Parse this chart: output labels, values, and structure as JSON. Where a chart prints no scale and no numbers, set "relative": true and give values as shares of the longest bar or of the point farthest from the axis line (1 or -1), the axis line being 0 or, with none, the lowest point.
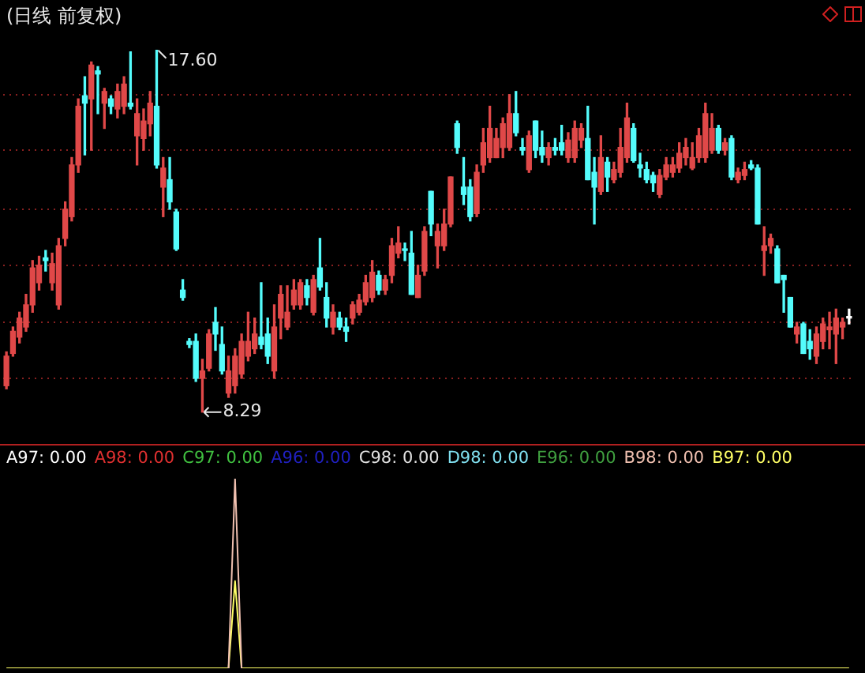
{
  "chart_data": [
    {
      "type": "candlestick",
      "title": "(日线 前复权)",
      "categories": [
        null,
        null,
        null,
        null,
        null,
        null,
        null,
        null,
        null,
        null,
        null,
        null,
        null,
        null,
        null,
        null,
        null,
        null,
        null,
        null,
        null,
        null,
        null,
        null,
        null,
        null,
        null,
        null,
        null,
        null,
        null,
        null,
        null,
        null,
        null,
        null,
        null,
        null,
        null,
        null,
        null,
        null,
        null,
        null,
        null,
        null,
        null,
        null,
        null,
        null,
        null,
        null,
        null,
        null,
        null,
        null,
        null,
        null,
        null,
        null,
        null,
        null,
        null,
        null,
        null,
        null,
        null,
        null,
        null,
        null,
        null,
        null,
        null,
        null,
        null,
        null,
        null,
        null,
        null,
        null,
        null,
        null,
        null,
        null,
        null,
        null,
        null,
        null,
        null,
        null,
        null,
        null,
        null,
        null,
        null,
        null,
        null,
        null,
        null,
        null,
        null,
        null,
        null,
        null,
        null,
        null,
        null,
        null,
        null,
        null,
        null,
        null,
        null,
        null,
        null,
        null,
        null,
        null,
        null,
        null,
        null,
        null,
        null,
        null,
        null,
        null,
        null,
        null,
        null,
        null
      ],
      "ohlc": [
        [
          8.97,
          9.84,
          8.89,
          9.73
        ],
        [
          9.8,
          10.48,
          9.73,
          10.37
        ],
        [
          10.22,
          10.86,
          10.07,
          10.71
        ],
        [
          10.48,
          11.32,
          10.37,
          11.05
        ],
        [
          11.05,
          12.19,
          10.86,
          12.0
        ],
        [
          11.62,
          12.3,
          11.43,
          12.07
        ],
        [
          12.26,
          12.45,
          11.92,
          12.19
        ],
        [
          11.62,
          12.38,
          11.43,
          12.11
        ],
        [
          11.05,
          12.76,
          10.94,
          12.57
        ],
        [
          12.76,
          13.7,
          12.57,
          13.51
        ],
        [
          13.32,
          14.84,
          13.21,
          14.65
        ],
        [
          14.65,
          16.35,
          14.46,
          16.16
        ],
        [
          16.43,
          16.92,
          14.91,
          16.24
        ],
        [
          16.35,
          17.3,
          15.03,
          17.22
        ],
        [
          17.07,
          17.18,
          15.97,
          16.99
        ],
        [
          16.24,
          16.62,
          15.59,
          16.54
        ],
        [
          16.35,
          16.43,
          15.97,
          16.16
        ],
        [
          16.09,
          16.73,
          15.86,
          16.54
        ],
        [
          16.16,
          16.92,
          15.97,
          16.73
        ],
        [
          16.24,
          17.56,
          16.09,
          16.16
        ],
        [
          15.4,
          16.35,
          14.65,
          15.97
        ],
        [
          15.33,
          16.09,
          15.03,
          15.78
        ],
        [
          15.71,
          16.54,
          15.4,
          16.24
        ],
        [
          16.16,
          17.6,
          14.57,
          14.65
        ],
        [
          14.08,
          14.84,
          13.32,
          14.57
        ],
        [
          14.27,
          14.84,
          13.51,
          13.7
        ],
        [
          13.44,
          13.51,
          12.45,
          12.49
        ],
        [
          11.43,
          11.7,
          11.17,
          11.24
        ],
        [
          10.11,
          10.18,
          9.95,
          10.03
        ],
        [
          10.11,
          10.3,
          9.08,
          9.16
        ],
        [
          9.16,
          9.65,
          8.29,
          9.35
        ],
        [
          9.42,
          10.41,
          9.35,
          10.3
        ],
        [
          10.6,
          10.98,
          9.88,
          10.3
        ],
        [
          10.03,
          10.48,
          9.27,
          9.35
        ],
        [
          8.78,
          9.73,
          8.67,
          9.35
        ],
        [
          8.97,
          9.92,
          8.78,
          9.73
        ],
        [
          9.27,
          10.3,
          9.16,
          10.11
        ],
        [
          9.73,
          10.86,
          9.61,
          10.11
        ],
        [
          9.92,
          10.71,
          9.8,
          10.3
        ],
        [
          10.22,
          11.62,
          9.92,
          10.03
        ],
        [
          10.3,
          10.71,
          9.54,
          9.73
        ],
        [
          9.35,
          11.05,
          9.16,
          10.48
        ],
        [
          10.71,
          11.54,
          10.18,
          11.32
        ],
        [
          10.48,
          11.54,
          10.41,
          10.86
        ],
        [
          11.05,
          11.7,
          10.94,
          11.43
        ],
        [
          11.05,
          11.7,
          10.94,
          11.62
        ],
        [
          11.54,
          11.7,
          11.05,
          11.24
        ],
        [
          10.86,
          11.81,
          10.79,
          11.7
        ],
        [
          12.0,
          12.76,
          11.43,
          11.51
        ],
        [
          11.24,
          11.62,
          10.48,
          10.71
        ],
        [
          10.48,
          11.05,
          10.3,
          10.86
        ],
        [
          10.71,
          10.86,
          10.41,
          10.48
        ],
        [
          10.48,
          10.71,
          10.11,
          10.37
        ],
        [
          10.71,
          11.13,
          10.56,
          11.05
        ],
        [
          10.86,
          11.32,
          10.79,
          11.17
        ],
        [
          11.13,
          11.81,
          11.05,
          11.62
        ],
        [
          11.24,
          12.19,
          11.13,
          11.89
        ],
        [
          11.81,
          11.92,
          11.32,
          11.43
        ],
        [
          11.43,
          11.81,
          11.32,
          11.7
        ],
        [
          11.81,
          12.76,
          11.62,
          12.57
        ],
        [
          12.38,
          13.06,
          12.26,
          12.64
        ],
        [
          12.49,
          12.64,
          12.19,
          12.45
        ],
        [
          12.38,
          12.94,
          11.32,
          11.32
        ],
        [
          11.24,
          12.07,
          11.24,
          11.81
        ],
        [
          11.92,
          13.06,
          11.81,
          12.94
        ],
        [
          13.97,
          13.97,
          12.83,
          13.13
        ],
        [
          12.57,
          13.13,
          12.0,
          12.94
        ],
        [
          12.57,
          13.51,
          12.45,
          13.13
        ],
        [
          13.13,
          14.34,
          13.06,
          14.34
        ],
        [
          15.71,
          15.78,
          14.95,
          15.1
        ],
        [
          14.08,
          14.84,
          13.63,
          13.89
        ],
        [
          14.08,
          14.27,
          13.21,
          13.32
        ],
        [
          13.4,
          14.65,
          13.32,
          14.46
        ],
        [
          14.65,
          15.59,
          14.46,
          15.22
        ],
        [
          14.84,
          16.16,
          14.72,
          15.59
        ],
        [
          14.84,
          15.59,
          14.84,
          15.33
        ],
        [
          15.1,
          15.86,
          14.84,
          15.71
        ],
        [
          15.1,
          16.46,
          15.03,
          15.97
        ],
        [
          15.97,
          16.54,
          15.4,
          15.48
        ],
        [
          15.1,
          15.33,
          14.91,
          15.03
        ],
        [
          14.53,
          15.52,
          14.46,
          15.4
        ],
        [
          15.78,
          15.78,
          14.84,
          15.03
        ],
        [
          15.1,
          15.52,
          14.72,
          14.91
        ],
        [
          14.84,
          15.22,
          14.65,
          15.1
        ],
        [
          15.1,
          15.33,
          14.91,
          15.03
        ],
        [
          15.22,
          15.67,
          14.91,
          15.03
        ],
        [
          14.84,
          15.48,
          14.72,
          15.29
        ],
        [
          14.84,
          15.78,
          14.72,
          15.59
        ],
        [
          15.29,
          15.71,
          15.1,
          15.59
        ],
        [
          15.33,
          16.16,
          14.27,
          14.27
        ],
        [
          14.46,
          14.84,
          13.13,
          14.08
        ],
        [
          13.97,
          15.4,
          13.89,
          14.84
        ],
        [
          14.72,
          14.84,
          13.97,
          14.34
        ],
        [
          14.27,
          14.72,
          14.19,
          14.53
        ],
        [
          14.46,
          15.59,
          14.34,
          15.1
        ],
        [
          14.84,
          16.24,
          14.72,
          15.86
        ],
        [
          15.59,
          15.71,
          14.72,
          14.76
        ],
        [
          14.65,
          14.95,
          14.34,
          14.57
        ],
        [
          14.53,
          14.72,
          14.19,
          14.27
        ],
        [
          14.38,
          14.46,
          13.97,
          14.19
        ],
        [
          13.89,
          14.53,
          13.81,
          14.38
        ],
        [
          14.34,
          14.84,
          14.27,
          14.65
        ],
        [
          14.46,
          14.84,
          14.34,
          14.65
        ],
        [
          14.57,
          15.22,
          14.46,
          14.95
        ],
        [
          14.84,
          15.33,
          14.65,
          15.1
        ],
        [
          14.57,
          15.22,
          14.53,
          14.84
        ],
        [
          14.84,
          15.59,
          14.72,
          15.4
        ],
        [
          14.84,
          16.24,
          14.72,
          15.97
        ],
        [
          15.03,
          15.97,
          14.95,
          15.59
        ],
        [
          15.59,
          15.67,
          14.95,
          15.03
        ],
        [
          15.03,
          15.33,
          14.91,
          15.22
        ],
        [
          15.33,
          15.4,
          14.27,
          14.34
        ],
        [
          14.27,
          14.57,
          14.19,
          14.46
        ],
        [
          14.38,
          14.72,
          14.27,
          14.53
        ],
        [
          14.65,
          14.76,
          14.53,
          14.57
        ],
        [
          14.57,
          14.65,
          13.13,
          13.13
        ],
        [
          12.45,
          13.06,
          11.81,
          12.57
        ],
        [
          12.57,
          12.87,
          12.38,
          12.76
        ],
        [
          12.49,
          12.57,
          11.62,
          11.62
        ],
        [
          11.81,
          11.81,
          10.86,
          11.7
        ],
        [
          11.24,
          11.24,
          10.48,
          10.48
        ],
        [
          10.3,
          10.6,
          10.07,
          10.48
        ],
        [
          10.56,
          10.6,
          9.8,
          9.8
        ],
        [
          10.11,
          10.41,
          9.65,
          9.92
        ],
        [
          9.73,
          10.48,
          9.54,
          10.3
        ],
        [
          10.11,
          10.71,
          9.92,
          10.56
        ],
        [
          10.41,
          10.86,
          9.92,
          10.48
        ],
        [
          10.3,
          10.94,
          9.54,
          10.71
        ],
        [
          10.48,
          10.71,
          10.18,
          10.6
        ],
        [
          10.71,
          10.94,
          10.56,
          10.71
        ]
      ],
      "colors": [
        "#e04848",
        "#e04848",
        "#e04848",
        "#e04848",
        "#e04848",
        "#e04848",
        "#54fcfc",
        "#e04848",
        "#e04848",
        "#e04848",
        "#e04848",
        "#e04848",
        "#54fcfc",
        "#e04848",
        "#54fcfc",
        "#e04848",
        "#54fcfc",
        "#e04848",
        "#e04848",
        "#54fcfc",
        "#e04848",
        "#e04848",
        "#e04848",
        "#54fcfc",
        "#e04848",
        "#54fcfc",
        "#54fcfc",
        "#54fcfc",
        "#54fcfc",
        "#54fcfc",
        "#e04848",
        "#e04848",
        "#54fcfc",
        "#54fcfc",
        "#e04848",
        "#e04848",
        "#e04848",
        "#e04848",
        "#e04848",
        "#54fcfc",
        "#54fcfc",
        "#e04848",
        "#e04848",
        "#e04848",
        "#e04848",
        "#e04848",
        "#54fcfc",
        "#e04848",
        "#54fcfc",
        "#54fcfc",
        "#e04848",
        "#54fcfc",
        "#54fcfc",
        "#e04848",
        "#e04848",
        "#e04848",
        "#e04848",
        "#54fcfc",
        "#e04848",
        "#e04848",
        "#e04848",
        "#54fcfc",
        "#54fcfc",
        "#e04848",
        "#e04848",
        "#54fcfc",
        "#e04848",
        "#e04848",
        "#e04848",
        "#54fcfc",
        "#54fcfc",
        "#54fcfc",
        "#e04848",
        "#e04848",
        "#e04848",
        "#e04848",
        "#e04848",
        "#e04848",
        "#54fcfc",
        "#54fcfc",
        "#e04848",
        "#54fcfc",
        "#54fcfc",
        "#e04848",
        "#54fcfc",
        "#54fcfc",
        "#e04848",
        "#e04848",
        "#e04848",
        "#54fcfc",
        "#54fcfc",
        "#e04848",
        "#54fcfc",
        "#e04848",
        "#e04848",
        "#e04848",
        "#54fcfc",
        "#54fcfc",
        "#54fcfc",
        "#54fcfc",
        "#e04848",
        "#e04848",
        "#e04848",
        "#e04848",
        "#e04848",
        "#e04848",
        "#e04848",
        "#e04848",
        "#e04848",
        "#54fcfc",
        "#e04848",
        "#54fcfc",
        "#e04848",
        "#e04848",
        "#54fcfc",
        "#54fcfc",
        "#e04848",
        "#e04848",
        "#54fcfc",
        "#54fcfc",
        "#54fcfc",
        "#e04848",
        "#54fcfc",
        "#54fcfc",
        "#e04848",
        "#e04848",
        "#e04848",
        "#e04848",
        "#e04848",
        "#ffffff"
      ],
      "yticks": [
        {
          "value": 16.46,
          "label": null
        },
        {
          "value": 15.03,
          "label": null
        },
        {
          "value": 13.51,
          "label": null
        },
        {
          "value": 12.07,
          "label": null
        },
        {
          "value": 10.6,
          "label": null
        },
        {
          "value": 9.16,
          "label": null
        }
      ],
      "grid": "y",
      "annotations": [
        "17.60",
        "8.29"
      ]
    },
    {
      "type": "line",
      "relative": true,
      "legend": "top",
      "categories": [
        null,
        null,
        null,
        null,
        null,
        null,
        null,
        null,
        null,
        null,
        null,
        null,
        null,
        null,
        null,
        null,
        null,
        null,
        null,
        null,
        null,
        null,
        null,
        null,
        null,
        null,
        null,
        null,
        null,
        null,
        null,
        null,
        null,
        null,
        null,
        null,
        null,
        null,
        null,
        null,
        null,
        null,
        null,
        null,
        null,
        null,
        null,
        null,
        null,
        null,
        null,
        null,
        null,
        null,
        null,
        null,
        null,
        null,
        null,
        null,
        null,
        null,
        null,
        null,
        null,
        null,
        null,
        null,
        null,
        null,
        null,
        null,
        null,
        null,
        null,
        null,
        null,
        null,
        null,
        null,
        null,
        null,
        null,
        null,
        null,
        null,
        null,
        null,
        null,
        null,
        null,
        null,
        null,
        null,
        null,
        null,
        null,
        null,
        null,
        null,
        null,
        null,
        null,
        null,
        null,
        null,
        null,
        null,
        null,
        null,
        null,
        null,
        null,
        null,
        null,
        null,
        null,
        null,
        null,
        null,
        null,
        null,
        null,
        null,
        null,
        null,
        null,
        null,
        null,
        null
      ],
      "series": [
        {
          "name": "A97: 0.00",
          "color": "#ffffff",
          "values": [
            null,
            null,
            null,
            null,
            null,
            null,
            null,
            null,
            null,
            null,
            null,
            null,
            null,
            null,
            null,
            null,
            null,
            null,
            null,
            null,
            null,
            null,
            null,
            null,
            null,
            null,
            null,
            null,
            null,
            null,
            null,
            null,
            null,
            null,
            null,
            null,
            null,
            null,
            null,
            null,
            null,
            null,
            null,
            null,
            null,
            null,
            null,
            null,
            null,
            null,
            null,
            null,
            null,
            null,
            null,
            null,
            null,
            null,
            null,
            null,
            null,
            null,
            null,
            null,
            null,
            null,
            null,
            null,
            null,
            null,
            null,
            null,
            null,
            null,
            null,
            null,
            null,
            null,
            null,
            null,
            null,
            null,
            null,
            null,
            null,
            null,
            null,
            null,
            null,
            null,
            null,
            null,
            null,
            null,
            null,
            null,
            null,
            null,
            null,
            null,
            null,
            null,
            null,
            null,
            null,
            null,
            null,
            null,
            null,
            null,
            null,
            null,
            null,
            null,
            null,
            null,
            null,
            null,
            null,
            null,
            null,
            null,
            null,
            null,
            null,
            null,
            null,
            null,
            null,
            null
          ]
        },
        {
          "name": "A98: 0.00",
          "color": "#e03030",
          "values": [
            null,
            null,
            null,
            null,
            null,
            null,
            null,
            null,
            null,
            null,
            null,
            null,
            null,
            null,
            null,
            null,
            null,
            null,
            null,
            null,
            null,
            null,
            null,
            null,
            null,
            null,
            null,
            null,
            null,
            null,
            null,
            null,
            null,
            null,
            null,
            null,
            null,
            null,
            null,
            null,
            null,
            null,
            null,
            null,
            null,
            null,
            null,
            null,
            null,
            null,
            null,
            null,
            null,
            null,
            null,
            null,
            null,
            null,
            null,
            null,
            null,
            null,
            null,
            null,
            null,
            null,
            null,
            null,
            null,
            null,
            null,
            null,
            null,
            null,
            null,
            null,
            null,
            null,
            null,
            null,
            null,
            null,
            null,
            null,
            null,
            null,
            null,
            null,
            null,
            null,
            null,
            null,
            null,
            null,
            null,
            null,
            null,
            null,
            null,
            null,
            null,
            null,
            null,
            null,
            null,
            null,
            null,
            null,
            null,
            null,
            null,
            null,
            null,
            null,
            null,
            null,
            null,
            null,
            null,
            null,
            null,
            null,
            null,
            null,
            null,
            null,
            null,
            null,
            null,
            null
          ]
        },
        {
          "name": "C97: 0.00",
          "color": "#40c040",
          "values": [
            null,
            null,
            null,
            null,
            null,
            null,
            null,
            null,
            null,
            null,
            null,
            null,
            null,
            null,
            null,
            null,
            null,
            null,
            null,
            null,
            null,
            null,
            null,
            null,
            null,
            null,
            null,
            null,
            null,
            null,
            null,
            null,
            null,
            null,
            null,
            null,
            null,
            null,
            null,
            null,
            null,
            null,
            null,
            null,
            null,
            null,
            null,
            null,
            null,
            null,
            null,
            null,
            null,
            null,
            null,
            null,
            null,
            null,
            null,
            null,
            null,
            null,
            null,
            null,
            null,
            null,
            null,
            null,
            null,
            null,
            null,
            null,
            null,
            null,
            null,
            null,
            null,
            null,
            null,
            null,
            null,
            null,
            null,
            null,
            null,
            null,
            null,
            null,
            null,
            null,
            null,
            null,
            null,
            null,
            null,
            null,
            null,
            null,
            null,
            null,
            null,
            null,
            null,
            null,
            null,
            null,
            null,
            null,
            null,
            null,
            null,
            null,
            null,
            null,
            null,
            null,
            null,
            null,
            null,
            null,
            null,
            null,
            null,
            null,
            null,
            null,
            null,
            null,
            null,
            null
          ]
        },
        {
          "name": "A96: 0.00",
          "color": "#2020c0",
          "values": [
            null,
            null,
            null,
            null,
            null,
            null,
            null,
            null,
            null,
            null,
            null,
            null,
            null,
            null,
            null,
            null,
            null,
            null,
            null,
            null,
            null,
            null,
            null,
            null,
            null,
            null,
            null,
            null,
            null,
            null,
            null,
            null,
            null,
            null,
            null,
            null,
            null,
            null,
            null,
            null,
            null,
            null,
            null,
            null,
            null,
            null,
            null,
            null,
            null,
            null,
            null,
            null,
            null,
            null,
            null,
            null,
            null,
            null,
            null,
            null,
            null,
            null,
            null,
            null,
            null,
            null,
            null,
            null,
            null,
            null,
            null,
            null,
            null,
            null,
            null,
            null,
            null,
            null,
            null,
            null,
            null,
            null,
            null,
            null,
            null,
            null,
            null,
            null,
            null,
            null,
            null,
            null,
            null,
            null,
            null,
            null,
            null,
            null,
            null,
            null,
            null,
            null,
            null,
            null,
            null,
            null,
            null,
            null,
            null,
            null,
            null,
            null,
            null,
            null,
            null,
            null,
            null,
            null,
            null,
            null,
            null,
            null,
            null,
            null,
            null,
            null,
            null,
            null,
            null,
            null
          ]
        },
        {
          "name": "C98: 0.00",
          "color": "#e0e0e0",
          "values": [
            null,
            null,
            null,
            null,
            null,
            null,
            null,
            null,
            null,
            null,
            null,
            null,
            null,
            null,
            null,
            null,
            null,
            null,
            null,
            null,
            null,
            null,
            null,
            null,
            null,
            null,
            null,
            null,
            null,
            null,
            null,
            null,
            null,
            null,
            null,
            null,
            null,
            null,
            null,
            null,
            null,
            null,
            null,
            null,
            null,
            null,
            null,
            null,
            null,
            null,
            null,
            null,
            null,
            null,
            null,
            null,
            null,
            null,
            null,
            null,
            null,
            null,
            null,
            null,
            null,
            null,
            null,
            null,
            null,
            null,
            null,
            null,
            null,
            null,
            null,
            null,
            null,
            null,
            null,
            null,
            null,
            null,
            null,
            null,
            null,
            null,
            null,
            null,
            null,
            null,
            null,
            null,
            null,
            null,
            null,
            null,
            null,
            null,
            null,
            null,
            null,
            null,
            null,
            null,
            null,
            null,
            null,
            null,
            null,
            null,
            null,
            null,
            null,
            null,
            null,
            null,
            null,
            null,
            null,
            null,
            null,
            null,
            null,
            null,
            null,
            null,
            null,
            null,
            null,
            null
          ]
        },
        {
          "name": "D98: 0.00",
          "color": "#80e0f0",
          "values": [
            null,
            null,
            null,
            null,
            null,
            null,
            null,
            null,
            null,
            null,
            null,
            null,
            null,
            null,
            null,
            null,
            null,
            null,
            null,
            null,
            null,
            null,
            null,
            null,
            null,
            null,
            null,
            null,
            null,
            null,
            null,
            null,
            null,
            null,
            null,
            null,
            null,
            null,
            null,
            null,
            null,
            null,
            null,
            null,
            null,
            null,
            null,
            null,
            null,
            null,
            null,
            null,
            null,
            null,
            null,
            null,
            null,
            null,
            null,
            null,
            null,
            null,
            null,
            null,
            null,
            null,
            null,
            null,
            null,
            null,
            null,
            null,
            null,
            null,
            null,
            null,
            null,
            null,
            null,
            null,
            null,
            null,
            null,
            null,
            null,
            null,
            null,
            null,
            null,
            null,
            null,
            null,
            null,
            null,
            null,
            null,
            null,
            null,
            null,
            null,
            null,
            null,
            null,
            null,
            null,
            null,
            null,
            null,
            null,
            null,
            null,
            null,
            null,
            null,
            null,
            null,
            null,
            null,
            null,
            null,
            null,
            null,
            null,
            null,
            null,
            null,
            null,
            null,
            null,
            null
          ]
        },
        {
          "name": "E96: 0.00",
          "color": "#40a040",
          "values": [
            null,
            null,
            null,
            null,
            null,
            null,
            null,
            null,
            null,
            null,
            null,
            null,
            null,
            null,
            null,
            null,
            null,
            null,
            null,
            null,
            null,
            null,
            null,
            null,
            null,
            null,
            null,
            null,
            null,
            null,
            null,
            null,
            null,
            null,
            null,
            null,
            null,
            null,
            null,
            null,
            null,
            null,
            null,
            null,
            null,
            null,
            null,
            null,
            null,
            null,
            null,
            null,
            null,
            null,
            null,
            null,
            null,
            null,
            null,
            null,
            null,
            null,
            null,
            null,
            null,
            null,
            null,
            null,
            null,
            null,
            null,
            null,
            null,
            null,
            null,
            null,
            null,
            null,
            null,
            null,
            null,
            null,
            null,
            null,
            null,
            null,
            null,
            null,
            null,
            null,
            null,
            null,
            null,
            null,
            null,
            null,
            null,
            null,
            null,
            null,
            null,
            null,
            null,
            null,
            null,
            null,
            null,
            null,
            null,
            null,
            null,
            null,
            null,
            null,
            null,
            null,
            null,
            null,
            null,
            null,
            null,
            null,
            null,
            null,
            null,
            null,
            null,
            null,
            null,
            null
          ]
        },
        {
          "name": "B98: 0.00",
          "color": "#f0c0b0",
          "values": [
            null,
            null,
            null,
            null,
            null,
            null,
            null,
            null,
            null,
            null,
            null,
            null,
            null,
            null,
            null,
            null,
            null,
            null,
            null,
            null,
            null,
            null,
            null,
            null,
            null,
            null,
            null,
            null,
            null,
            null,
            null,
            null,
            null,
            null,
            0,
            1,
            0,
            null,
            null,
            null,
            null,
            null,
            null,
            null,
            null,
            null,
            null,
            null,
            null,
            null,
            null,
            null,
            null,
            null,
            null,
            null,
            null,
            null,
            null,
            null,
            null,
            null,
            null,
            null,
            null,
            null,
            null,
            null,
            null,
            null,
            null,
            null,
            null,
            null,
            null,
            null,
            null,
            null,
            null,
            null,
            null,
            null,
            null,
            null,
            null,
            null,
            null,
            null,
            null,
            null,
            null,
            null,
            null,
            null,
            null,
            null,
            null,
            null,
            null,
            null,
            null,
            null,
            null,
            null,
            null,
            null,
            null,
            null,
            null,
            null,
            null,
            null,
            null,
            null,
            null,
            null,
            null,
            null,
            null,
            null,
            null,
            null,
            null,
            null,
            null,
            null,
            null,
            null,
            null,
            null
          ]
        },
        {
          "name": "B97: 0.00",
          "color": "#ffff66",
          "values": [
            0,
            0,
            0,
            0,
            0,
            0,
            0,
            0,
            0,
            0,
            0,
            0,
            0,
            0,
            0,
            0,
            0,
            0,
            0,
            0,
            0,
            0,
            0,
            0,
            0,
            0,
            0,
            0,
            0,
            0,
            0,
            0,
            0,
            0,
            0,
            0.46,
            0,
            0,
            0,
            0,
            0,
            0,
            0,
            0,
            0,
            0,
            0,
            0,
            0,
            0,
            0,
            0,
            0,
            0,
            0,
            0,
            0,
            0,
            0,
            0,
            0,
            0,
            0,
            0,
            0,
            0,
            0,
            0,
            0,
            0,
            0,
            0,
            0,
            0,
            0,
            0,
            0,
            0,
            0,
            0,
            0,
            0,
            0,
            0,
            0,
            0,
            0,
            0,
            0,
            0,
            0,
            0,
            0,
            0,
            0,
            0,
            0,
            0,
            0,
            0,
            0,
            0,
            0,
            0,
            0,
            0,
            0,
            0,
            0,
            0,
            0,
            0,
            0,
            0,
            0,
            0,
            0,
            0,
            0,
            0,
            0,
            0,
            0,
            0,
            0,
            0,
            0,
            0,
            0,
            0
          ]
        }
      ]
    }
  ]
}
